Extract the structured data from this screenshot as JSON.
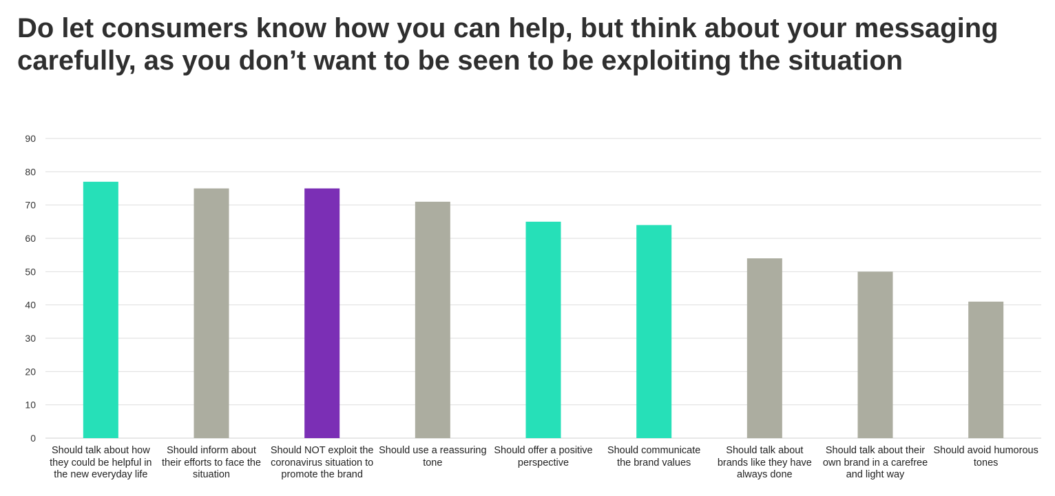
{
  "headline": "Do let consumers know how you can help, but think about your messaging carefully, as you don’t want to be seen to be exploiting the situation",
  "chart_data": {
    "type": "bar",
    "title": "",
    "xlabel": "",
    "ylabel": "",
    "ylim": [
      0,
      90
    ],
    "yticks": [
      0,
      10,
      20,
      30,
      40,
      50,
      60,
      70,
      80,
      90
    ],
    "grid": true,
    "legend": "none",
    "categories": [
      "Should talk about how they could be helpful in the new everyday life",
      "Should inform about their efforts to face the situation",
      "Should NOT exploit the coronavirus situation to promote the brand",
      "Should use a reassuring tone",
      "Should offer a positive perspective",
      "Should communicate the brand values",
      "Should talk about brands like they have always done",
      "Should talk about their own brand in a carefree and light way",
      "Should avoid humorous tones"
    ],
    "values": [
      77,
      75,
      75,
      71,
      65,
      64,
      54,
      50,
      41
    ],
    "bar_colors": [
      "#26e0b8",
      "#acada0",
      "#7b2fb5",
      "#acada0",
      "#26e0b8",
      "#26e0b8",
      "#acada0",
      "#acada0",
      "#acada0"
    ]
  },
  "colors": {
    "grid": "#dedede",
    "axis": "#cfcfcf"
  }
}
